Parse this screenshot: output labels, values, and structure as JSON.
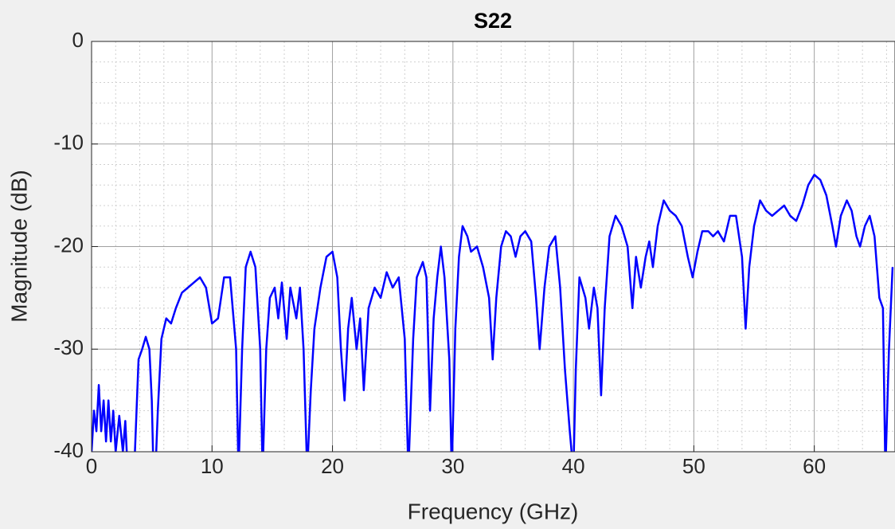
{
  "chart_data": {
    "type": "line",
    "title": "S22",
    "x_label": "Frequency (GHz)",
    "y_label": "Magnitude (dB)",
    "xlim": [
      0,
      66.7
    ],
    "ylim": [
      -40,
      0
    ],
    "xticks": [
      0,
      10,
      20,
      30,
      40,
      50,
      60
    ],
    "yticks": [
      -40,
      -30,
      -20,
      -10,
      0
    ],
    "grid": true,
    "minor_grid": true,
    "x": [
      0,
      0.2,
      0.4,
      0.6,
      0.8,
      1.0,
      1.2,
      1.4,
      1.6,
      1.8,
      2.0,
      2.3,
      2.6,
      2.8,
      3.0,
      3.3,
      3.6,
      3.9,
      4.2,
      4.5,
      4.8,
      5.0,
      5.2,
      5.5,
      5.8,
      6.2,
      6.6,
      7.0,
      7.5,
      8.0,
      8.5,
      9.0,
      9.5,
      10.0,
      10.5,
      11.0,
      11.5,
      12.0,
      12.2,
      12.5,
      12.8,
      13.2,
      13.6,
      14.0,
      14.2,
      14.5,
      14.8,
      15.2,
      15.5,
      15.8,
      16.2,
      16.5,
      17.0,
      17.3,
      17.6,
      17.9,
      18.2,
      18.5,
      19.0,
      19.5,
      20.0,
      20.4,
      20.7,
      21.0,
      21.3,
      21.6,
      22.0,
      22.3,
      22.6,
      23.0,
      23.5,
      24.0,
      24.5,
      25.0,
      25.5,
      26.0,
      26.3,
      26.7,
      27.0,
      27.5,
      27.8,
      28.1,
      28.4,
      28.7,
      29.0,
      29.3,
      29.7,
      29.9,
      30.2,
      30.5,
      30.8,
      31.2,
      31.5,
      32.0,
      32.5,
      33.0,
      33.3,
      33.6,
      34.0,
      34.4,
      34.8,
      35.2,
      35.6,
      36.0,
      36.5,
      36.9,
      37.2,
      37.6,
      38.0,
      38.5,
      38.9,
      39.3,
      39.7,
      40.0,
      40.2,
      40.5,
      41.0,
      41.3,
      41.7,
      42.0,
      42.3,
      42.6,
      43.0,
      43.5,
      44.0,
      44.5,
      44.9,
      45.2,
      45.6,
      46.0,
      46.3,
      46.6,
      47.0,
      47.5,
      48.0,
      48.5,
      49.0,
      49.5,
      49.9,
      50.3,
      50.7,
      51.2,
      51.6,
      52.0,
      52.5,
      53.0,
      53.5,
      54.0,
      54.3,
      54.6,
      55.0,
      55.5,
      56.0,
      56.5,
      57.0,
      57.5,
      58.0,
      58.5,
      59.0,
      59.5,
      60.0,
      60.5,
      61.0,
      61.5,
      61.8,
      62.2,
      62.7,
      63.1,
      63.5,
      63.8,
      64.2,
      64.6,
      65.0,
      65.4,
      65.7,
      65.9,
      66.2,
      66.5
    ],
    "series": [
      {
        "color": "#0000ff",
        "values": [
          -40,
          -36,
          -38,
          -33.5,
          -38,
          -35,
          -39,
          -35,
          -39,
          -36,
          -40,
          -36.5,
          -40,
          -37,
          -42,
          -45,
          -40,
          -31,
          -30,
          -28.8,
          -30,
          -35,
          -45,
          -36,
          -29,
          -27,
          -27.5,
          -26,
          -24.5,
          -24,
          -23.5,
          -23,
          -24,
          -27.5,
          -27,
          -23,
          -23,
          -30,
          -42,
          -30,
          -22,
          -20.5,
          -22,
          -30,
          -42,
          -30,
          -25,
          -24,
          -27,
          -23.5,
          -29,
          -24,
          -27,
          -24,
          -30,
          -42,
          -34,
          -28,
          -24,
          -21,
          -20.5,
          -23,
          -30,
          -35,
          -28,
          -25,
          -30,
          -27,
          -34,
          -26,
          -24,
          -25,
          -22.5,
          -24,
          -23,
          -29,
          -42,
          -29,
          -23,
          -21.5,
          -23,
          -36,
          -27,
          -23,
          -20,
          -23,
          -31,
          -42,
          -28,
          -21,
          -18,
          -19,
          -20.5,
          -20,
          -22,
          -25,
          -31,
          -25,
          -20,
          -18.5,
          -19,
          -21,
          -19,
          -18.5,
          -19.5,
          -25,
          -30,
          -24,
          -20,
          -19,
          -24,
          -32,
          -38,
          -42,
          -32,
          -23,
          -25,
          -28,
          -24,
          -26,
          -34.5,
          -26,
          -19,
          -17,
          -18,
          -20,
          -26,
          -21,
          -24,
          -21,
          -19.5,
          -22,
          -18,
          -15.5,
          -16.5,
          -17,
          -18,
          -21,
          -23,
          -20.5,
          -18.5,
          -18.5,
          -19,
          -18.5,
          -19.5,
          -17,
          -17,
          -21,
          -28,
          -22,
          -18,
          -15.5,
          -16.5,
          -17,
          -16.5,
          -16,
          -17,
          -17.5,
          -16,
          -14,
          -13,
          -13.5,
          -15,
          -18,
          -20,
          -17,
          -15.5,
          -16.5,
          -19,
          -20,
          -18,
          -17,
          -19,
          -25,
          -26,
          -42,
          -30,
          -22
        ]
      }
    ]
  }
}
